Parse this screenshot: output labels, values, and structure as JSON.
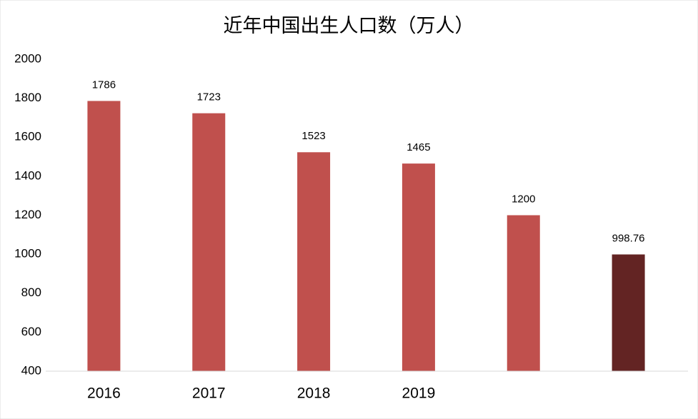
{
  "chart_data": {
    "type": "bar",
    "title": "近年中国出生人口数（万人）",
    "categories": [
      "2016",
      "2017",
      "2018",
      "2019",
      null,
      null
    ],
    "values": [
      1786,
      1723,
      1523,
      1465,
      1200,
      998.76
    ],
    "colors": [
      "#c0504d",
      "#c0504d",
      "#c0504d",
      "#c0504d",
      "#c0504d",
      "#632423"
    ],
    "ylim": [
      400,
      2000
    ],
    "yticks": [
      400,
      600,
      800,
      1000,
      1200,
      1400,
      1600,
      1800,
      2000
    ],
    "grid": false
  }
}
